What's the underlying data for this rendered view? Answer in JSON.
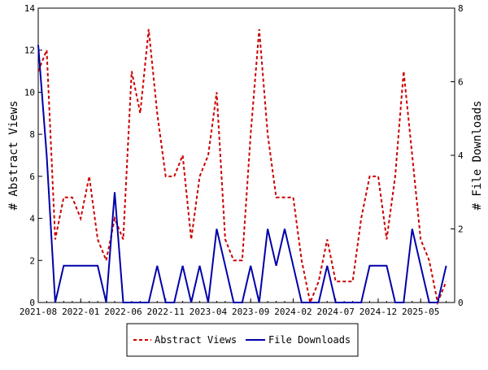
{
  "chart_data": {
    "type": "line",
    "y_left": {
      "label": "# Abstract Views",
      "range": [
        0,
        14
      ],
      "ticks": [
        0,
        2,
        4,
        6,
        8,
        10,
        12,
        14
      ]
    },
    "y_right": {
      "label": "# File Downloads",
      "range": [
        0,
        8
      ],
      "ticks": [
        0,
        2,
        4,
        6,
        8
      ]
    },
    "x": {
      "range": [
        "2021-08",
        "2025-09"
      ],
      "tick_labels": [
        "2021-08",
        "2022-01",
        "2022-06",
        "2022-11",
        "2023-04",
        "2023-09",
        "2024-02",
        "2024-07",
        "2024-12",
        "2025-05"
      ]
    },
    "months": [
      "2021-08",
      "2021-09",
      "2021-10",
      "2021-11",
      "2021-12",
      "2022-01",
      "2022-02",
      "2022-03",
      "2022-04",
      "2022-05",
      "2022-06",
      "2022-07",
      "2022-08",
      "2022-09",
      "2022-10",
      "2022-11",
      "2022-12",
      "2023-01",
      "2023-02",
      "2023-03",
      "2023-04",
      "2023-05",
      "2023-06",
      "2023-07",
      "2023-08",
      "2023-09",
      "2023-10",
      "2023-11",
      "2023-12",
      "2024-01",
      "2024-02",
      "2024-03",
      "2024-04",
      "2024-05",
      "2024-06",
      "2024-07",
      "2024-08",
      "2024-09",
      "2024-10",
      "2024-11",
      "2024-12",
      "2025-01",
      "2025-02",
      "2025-03",
      "2025-04",
      "2025-05",
      "2025-06",
      "2025-07",
      "2025-08",
      "2025-09"
    ],
    "series": [
      {
        "name": "Abstract Views",
        "axis": "left",
        "color": "#cc0000",
        "dash": "dashed",
        "values": [
          11,
          12,
          3,
          5,
          5,
          4,
          6,
          3,
          2,
          4,
          3,
          11,
          9,
          13,
          9,
          6,
          6,
          7,
          3,
          6,
          7,
          10,
          3,
          2,
          2,
          8,
          13,
          8,
          5,
          5,
          5,
          2,
          0,
          1,
          3,
          1,
          1,
          1,
          4,
          6,
          6,
          3,
          6,
          11,
          7,
          3,
          2,
          0,
          1,
          null
        ]
      },
      {
        "name": "File Downloads",
        "axis": "right",
        "color": "#0000aa",
        "dash": "solid",
        "values": [
          7,
          4,
          0,
          1,
          1,
          1,
          1,
          1,
          0,
          3,
          0,
          0,
          0,
          0,
          1,
          0,
          0,
          1,
          0,
          1,
          0,
          2,
          1,
          0,
          0,
          1,
          0,
          2,
          1,
          2,
          1,
          0,
          0,
          0,
          1,
          0,
          0,
          0,
          0,
          1,
          1,
          1,
          0,
          0,
          2,
          1,
          0,
          0,
          1,
          null
        ]
      }
    ],
    "legend": {
      "placement": "bottom-center"
    },
    "grid": false
  }
}
